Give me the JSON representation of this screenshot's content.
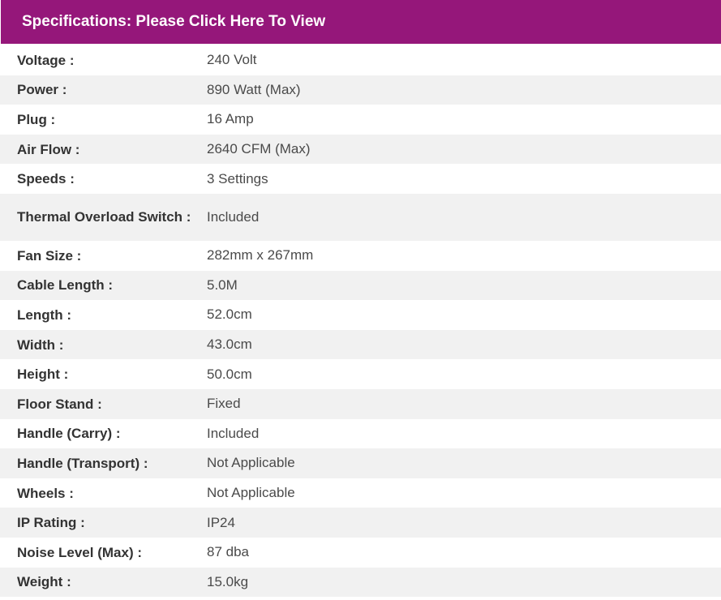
{
  "header": {
    "title": "Specifications: Please Click Here To View",
    "background_color": "#95177a"
  },
  "specs": [
    {
      "label": "Voltage :",
      "value": "240 Volt"
    },
    {
      "label": "Power :",
      "value": "890 Watt (Max)"
    },
    {
      "label": "Plug :",
      "value": "16 Amp"
    },
    {
      "label": "Air Flow :",
      "value": "2640 CFM (Max)"
    },
    {
      "label": "Speeds :",
      "value": "3 Settings"
    },
    {
      "label": "Thermal Overload Switch :",
      "value": "Included"
    },
    {
      "label": "Fan Size :",
      "value": "282mm x 267mm"
    },
    {
      "label": "Cable Length :",
      "value": "5.0M"
    },
    {
      "label": "Length :",
      "value": "52.0cm"
    },
    {
      "label": "Width :",
      "value": "43.0cm"
    },
    {
      "label": "Height :",
      "value": "50.0cm"
    },
    {
      "label": "Floor Stand :",
      "value": "Fixed"
    },
    {
      "label": "Handle (Carry) :",
      "value": "Included"
    },
    {
      "label": "Handle (Transport) :",
      "value": "Not Applicable"
    },
    {
      "label": "Wheels :",
      "value": "Not Applicable"
    },
    {
      "label": "IP Rating :",
      "value": "IP24"
    },
    {
      "label": "Noise Level (Max) :",
      "value": "87 dba"
    },
    {
      "label": "Weight :",
      "value": "15.0kg"
    }
  ]
}
